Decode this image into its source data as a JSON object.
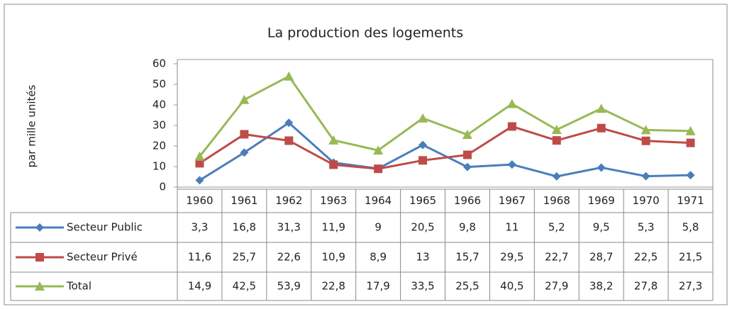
{
  "chart_data": {
    "type": "line",
    "title": "La production des logements",
    "y_label": "par mille unités",
    "categories": [
      "1960",
      "1961",
      "1962",
      "1963",
      "1964",
      "1965",
      "1966",
      "1967",
      "1968",
      "1969",
      "1970",
      "1971"
    ],
    "series": [
      {
        "name": "Secteur Public",
        "color": "#4a7ebb",
        "marker": "diamond",
        "values": [
          3.3,
          16.8,
          31.3,
          11.9,
          9,
          20.5,
          9.8,
          11,
          5.2,
          9.5,
          5.3,
          5.8
        ],
        "value_labels": [
          "3,3",
          "16,8",
          "31,3",
          "11,9",
          "9",
          "20,5",
          "9,8",
          "11",
          "5,2",
          "9,5",
          "5,3",
          "5,8"
        ]
      },
      {
        "name": "Secteur Privé",
        "color": "#be4b48",
        "marker": "square",
        "values": [
          11.6,
          25.7,
          22.6,
          10.9,
          8.9,
          13,
          15.7,
          29.5,
          22.7,
          28.7,
          22.5,
          21.5
        ],
        "value_labels": [
          "11,6",
          "25,7",
          "22,6",
          "10,9",
          "8,9",
          "13",
          "15,7",
          "29,5",
          "22,7",
          "28,7",
          "22,5",
          "21,5"
        ]
      },
      {
        "name": "Total",
        "color": "#98b954",
        "marker": "triangle",
        "values": [
          14.9,
          42.5,
          53.9,
          22.8,
          17.9,
          33.5,
          25.5,
          40.5,
          27.9,
          38.2,
          27.8,
          27.3
        ],
        "value_labels": [
          "14,9",
          "42,5",
          "53,9",
          "22,8",
          "17,9",
          "33,5",
          "25,5",
          "40,5",
          "27,9",
          "38,2",
          "27,8",
          "27,3"
        ]
      }
    ],
    "ylim": [
      0,
      60
    ],
    "yticks": [
      0,
      10,
      20,
      30,
      40,
      50,
      60
    ],
    "grid": false
  }
}
